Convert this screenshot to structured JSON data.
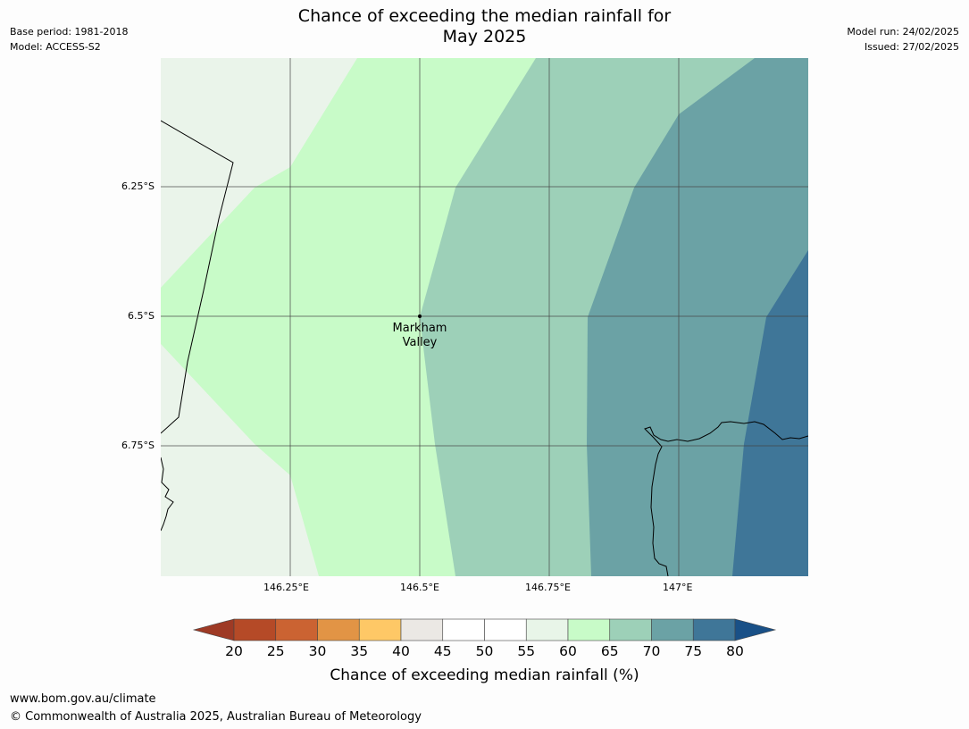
{
  "header": {
    "title_line1": "Chance of exceeding the median rainfall for",
    "title_line2": "May 2025",
    "base_period": "Base period: 1981-2018",
    "model": "Model: ACCESS-S2",
    "model_run": "Model run: 24/02/2025",
    "issued": "Issued: 27/02/2025"
  },
  "map": {
    "lat_labels": [
      "6.25°S",
      "6.5°S",
      "6.75°S"
    ],
    "lon_labels": [
      "146.25°E",
      "146.5°E",
      "146.75°E",
      "147°E"
    ],
    "place": {
      "name_line1": "Markham",
      "name_line2": "Valley"
    }
  },
  "colorbar": {
    "ticks": [
      "20",
      "25",
      "30",
      "35",
      "40",
      "45",
      "50",
      "55",
      "60",
      "65",
      "70",
      "75",
      "80"
    ],
    "title": "Chance of exceeding median rainfall (%)",
    "colors": [
      "#9e3a25",
      "#b54a27",
      "#cb6332",
      "#e29445",
      "#fec866",
      "#ebe8e4",
      "#ffffff",
      "#ffffff",
      "#e8f5e8",
      "#c8fbc8",
      "#9dd0b8",
      "#6ba2a5",
      "#3f7698",
      "#195087"
    ]
  },
  "footer": {
    "url": "www.bom.gov.au/climate",
    "copyright": "© Commonwealth of Australia 2025, Australian Bureau of Meteorology"
  }
}
